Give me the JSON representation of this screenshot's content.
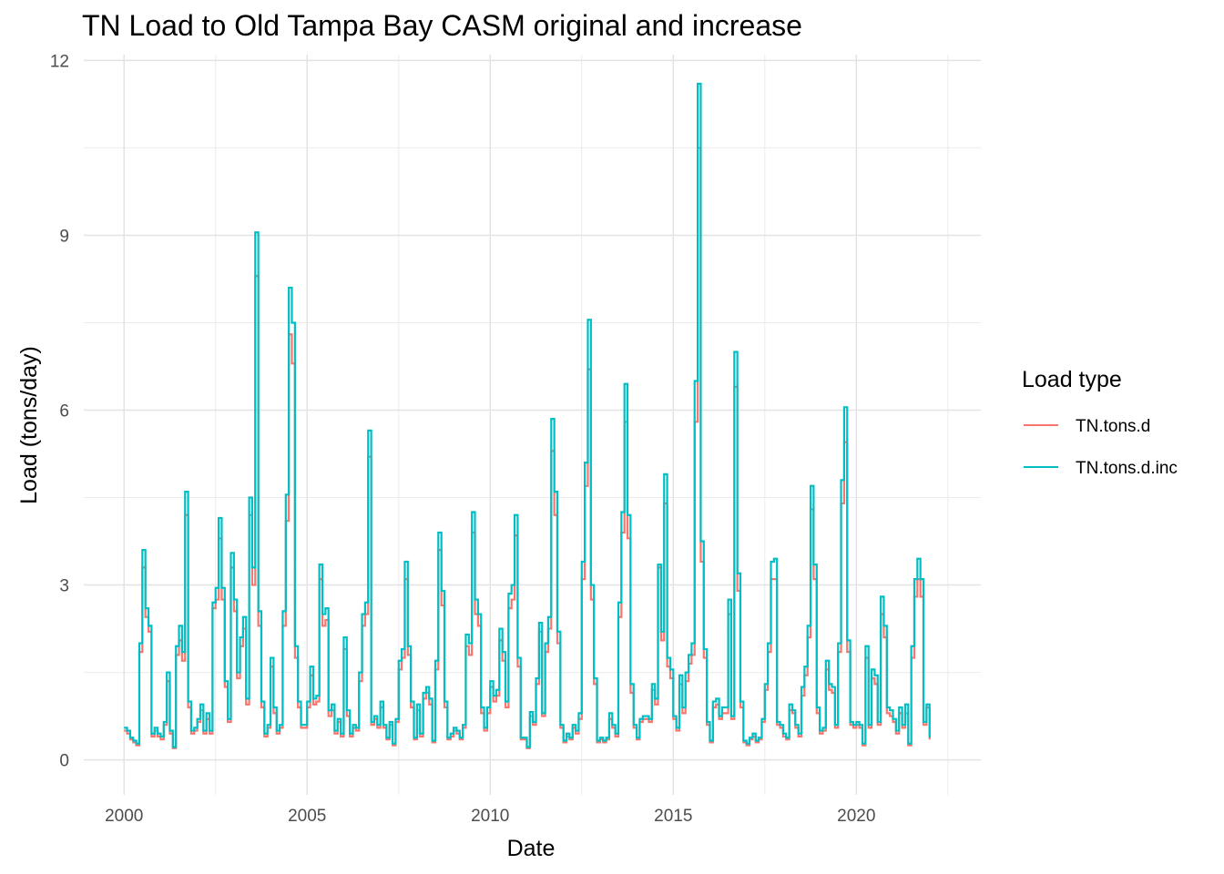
{
  "chart_data": {
    "type": "line",
    "title": "TN Load to Old Tampa Bay CASM original and increase",
    "xlabel": "Date",
    "ylabel": "Load (tons/day)",
    "x_unit": "decimal year",
    "xlim": [
      1998.9,
      2023.4
    ],
    "ylim": [
      -0.6,
      12.1
    ],
    "x_ticks": [
      2000,
      2005,
      2010,
      2015,
      2020
    ],
    "x_tick_labels": [
      "2000",
      "2005",
      "2010",
      "2015",
      "2020"
    ],
    "y_ticks": [
      0,
      3,
      6,
      9,
      12
    ],
    "y_tick_labels": [
      "0",
      "3",
      "6",
      "9",
      "12"
    ],
    "grid": true,
    "step": true,
    "legend": {
      "title": "Load type",
      "position": "right"
    },
    "x": [
      2000.0,
      2000.083,
      2000.167,
      2000.25,
      2000.333,
      2000.417,
      2000.5,
      2000.583,
      2000.667,
      2000.75,
      2000.833,
      2000.917,
      2001.0,
      2001.083,
      2001.167,
      2001.25,
      2001.333,
      2001.417,
      2001.5,
      2001.583,
      2001.667,
      2001.75,
      2001.833,
      2001.917,
      2002.0,
      2002.083,
      2002.167,
      2002.25,
      2002.333,
      2002.417,
      2002.5,
      2002.583,
      2002.667,
      2002.75,
      2002.833,
      2002.917,
      2003.0,
      2003.083,
      2003.167,
      2003.25,
      2003.333,
      2003.417,
      2003.5,
      2003.583,
      2003.667,
      2003.75,
      2003.833,
      2003.917,
      2004.0,
      2004.083,
      2004.167,
      2004.25,
      2004.333,
      2004.417,
      2004.5,
      2004.583,
      2004.667,
      2004.75,
      2004.833,
      2004.917,
      2005.0,
      2005.083,
      2005.167,
      2005.25,
      2005.333,
      2005.417,
      2005.5,
      2005.583,
      2005.667,
      2005.75,
      2005.833,
      2005.917,
      2006.0,
      2006.083,
      2006.167,
      2006.25,
      2006.333,
      2006.417,
      2006.5,
      2006.583,
      2006.667,
      2006.75,
      2006.833,
      2006.917,
      2007.0,
      2007.083,
      2007.167,
      2007.25,
      2007.333,
      2007.417,
      2007.5,
      2007.583,
      2007.667,
      2007.75,
      2007.833,
      2007.917,
      2008.0,
      2008.083,
      2008.167,
      2008.25,
      2008.333,
      2008.417,
      2008.5,
      2008.583,
      2008.667,
      2008.75,
      2008.833,
      2008.917,
      2009.0,
      2009.083,
      2009.167,
      2009.25,
      2009.333,
      2009.417,
      2009.5,
      2009.583,
      2009.667,
      2009.75,
      2009.833,
      2009.917,
      2010.0,
      2010.083,
      2010.167,
      2010.25,
      2010.333,
      2010.417,
      2010.5,
      2010.583,
      2010.667,
      2010.75,
      2010.833,
      2010.917,
      2011.0,
      2011.083,
      2011.167,
      2011.25,
      2011.333,
      2011.417,
      2011.5,
      2011.583,
      2011.667,
      2011.75,
      2011.833,
      2011.917,
      2012.0,
      2012.083,
      2012.167,
      2012.25,
      2012.333,
      2012.417,
      2012.5,
      2012.583,
      2012.667,
      2012.75,
      2012.833,
      2012.917,
      2013.0,
      2013.083,
      2013.167,
      2013.25,
      2013.333,
      2013.417,
      2013.5,
      2013.583,
      2013.667,
      2013.75,
      2013.833,
      2013.917,
      2014.0,
      2014.083,
      2014.167,
      2014.25,
      2014.333,
      2014.417,
      2014.5,
      2014.583,
      2014.667,
      2014.75,
      2014.833,
      2014.917,
      2015.0,
      2015.083,
      2015.167,
      2015.25,
      2015.333,
      2015.417,
      2015.5,
      2015.583,
      2015.667,
      2015.75,
      2015.833,
      2015.917,
      2016.0,
      2016.083,
      2016.167,
      2016.25,
      2016.333,
      2016.417,
      2016.5,
      2016.583,
      2016.667,
      2016.75,
      2016.833,
      2016.917,
      2017.0,
      2017.083,
      2017.167,
      2017.25,
      2017.333,
      2017.417,
      2017.5,
      2017.583,
      2017.667,
      2017.75,
      2017.833,
      2017.917,
      2018.0,
      2018.083,
      2018.167,
      2018.25,
      2018.333,
      2018.417,
      2018.5,
      2018.583,
      2018.667,
      2018.75,
      2018.833,
      2018.917,
      2019.0,
      2019.083,
      2019.167,
      2019.25,
      2019.333,
      2019.417,
      2019.5,
      2019.583,
      2019.667,
      2019.75,
      2019.833,
      2019.917,
      2020.0,
      2020.083,
      2020.167,
      2020.25,
      2020.333,
      2020.417,
      2020.5,
      2020.583,
      2020.667,
      2020.75,
      2020.833,
      2020.917,
      2021.0,
      2021.083,
      2021.167,
      2021.25,
      2021.333,
      2021.417,
      2021.5,
      2021.583,
      2021.667,
      2021.75,
      2021.833,
      2021.917,
      2022.0
    ],
    "series": [
      {
        "name": "TN.tons.d",
        "color": "#F8766D",
        "values": [
          0.5,
          0.45,
          0.35,
          0.3,
          0.25,
          1.85,
          3.3,
          2.45,
          2.2,
          0.4,
          0.5,
          0.4,
          0.35,
          0.6,
          1.35,
          0.45,
          0.2,
          1.8,
          2.05,
          1.7,
          4.2,
          0.9,
          0.45,
          0.5,
          0.65,
          0.85,
          0.45,
          0.7,
          0.45,
          2.6,
          2.75,
          3.8,
          2.75,
          1.25,
          0.65,
          3.3,
          2.55,
          1.4,
          1.95,
          2.25,
          0.95,
          4.2,
          3.0,
          8.3,
          2.3,
          0.9,
          0.4,
          0.55,
          1.6,
          0.8,
          0.45,
          0.55,
          2.3,
          4.1,
          7.3,
          6.8,
          1.75,
          0.9,
          0.55,
          0.55,
          0.9,
          1.45,
          0.95,
          1.0,
          3.1,
          2.3,
          2.4,
          0.75,
          0.85,
          0.45,
          0.65,
          0.4,
          1.9,
          0.75,
          0.4,
          0.55,
          0.5,
          1.35,
          2.3,
          2.5,
          5.2,
          0.6,
          0.7,
          0.55,
          0.9,
          0.55,
          0.35,
          0.6,
          0.25,
          0.65,
          1.55,
          1.75,
          3.1,
          1.8,
          0.9,
          0.35,
          0.85,
          0.4,
          1.05,
          1.15,
          0.95,
          0.3,
          1.55,
          3.6,
          2.65,
          0.9,
          0.35,
          0.4,
          0.5,
          0.45,
          0.35,
          0.55,
          1.95,
          1.8,
          3.9,
          2.5,
          2.3,
          0.8,
          0.5,
          0.8,
          1.25,
          1.0,
          1.1,
          2.05,
          1.7,
          0.9,
          2.6,
          2.75,
          3.85,
          1.6,
          0.35,
          0.35,
          0.2,
          0.75,
          0.6,
          1.3,
          2.2,
          0.75,
          1.85,
          2.25,
          5.3,
          4.2,
          2.0,
          0.55,
          0.3,
          0.4,
          0.35,
          0.55,
          0.45,
          0.7,
          3.1,
          4.7,
          6.7,
          2.75,
          1.3,
          0.3,
          0.35,
          0.3,
          0.35,
          0.7,
          0.55,
          0.4,
          2.45,
          3.9,
          5.8,
          3.8,
          1.15,
          0.55,
          0.35,
          0.65,
          0.7,
          0.7,
          0.65,
          1.2,
          0.95,
          3.3,
          2.05,
          4.4,
          1.6,
          1.4,
          0.7,
          0.5,
          1.3,
          0.8,
          1.35,
          1.65,
          1.8,
          5.8,
          10.5,
          3.4,
          1.75,
          0.6,
          0.3,
          0.9,
          0.95,
          0.7,
          0.8,
          0.8,
          2.5,
          0.7,
          6.4,
          2.9,
          0.9,
          0.3,
          0.25,
          0.35,
          0.4,
          0.3,
          0.35,
          0.65,
          1.2,
          1.85,
          3.1,
          3.1,
          0.6,
          0.55,
          0.4,
          0.35,
          0.85,
          0.8,
          0.55,
          0.4,
          1.1,
          1.45,
          2.1,
          4.3,
          3.1,
          0.8,
          0.45,
          0.5,
          1.55,
          1.2,
          1.15,
          0.55,
          1.85,
          4.4,
          5.45,
          1.85,
          0.6,
          0.55,
          0.6,
          0.55,
          0.25,
          1.75,
          0.55,
          1.4,
          1.3,
          0.6,
          2.5,
          2.1,
          0.8,
          0.75,
          0.65,
          0.45,
          0.8,
          0.55,
          0.8,
          0.25,
          1.75,
          2.8,
          3.1,
          2.8,
          0.6,
          0.9,
          0.35
        ]
      },
      {
        "name": "TN.tons.d.inc",
        "color": "#00BFC4",
        "values": [
          0.55,
          0.5,
          0.38,
          0.33,
          0.28,
          2.0,
          3.6,
          2.6,
          2.3,
          0.45,
          0.55,
          0.45,
          0.4,
          0.65,
          1.5,
          0.5,
          0.22,
          1.95,
          2.3,
          1.85,
          4.6,
          1.0,
          0.5,
          0.55,
          0.7,
          0.95,
          0.5,
          0.8,
          0.5,
          2.7,
          2.95,
          4.15,
          2.95,
          1.35,
          0.7,
          3.55,
          2.75,
          1.5,
          2.1,
          2.45,
          1.05,
          4.5,
          3.3,
          9.05,
          2.55,
          1.0,
          0.45,
          0.6,
          1.75,
          0.9,
          0.5,
          0.6,
          2.55,
          4.55,
          8.1,
          7.5,
          1.95,
          1.0,
          0.6,
          0.6,
          1.0,
          1.6,
          1.05,
          1.1,
          3.35,
          2.5,
          2.6,
          0.85,
          0.95,
          0.5,
          0.7,
          0.45,
          2.1,
          0.85,
          0.45,
          0.6,
          0.55,
          1.5,
          2.5,
          2.7,
          5.65,
          0.65,
          0.75,
          0.6,
          1.0,
          0.6,
          0.38,
          0.65,
          0.28,
          0.7,
          1.7,
          1.9,
          3.4,
          1.95,
          1.0,
          0.38,
          0.95,
          0.45,
          1.15,
          1.25,
          1.05,
          0.33,
          1.7,
          3.9,
          2.9,
          1.0,
          0.38,
          0.45,
          0.55,
          0.5,
          0.38,
          0.6,
          2.15,
          2.0,
          4.25,
          2.75,
          2.5,
          0.9,
          0.55,
          0.9,
          1.35,
          1.1,
          1.2,
          2.25,
          1.85,
          1.0,
          2.85,
          3.0,
          4.2,
          1.75,
          0.38,
          0.38,
          0.22,
          0.82,
          0.65,
          1.4,
          2.35,
          0.8,
          2.0,
          2.45,
          5.85,
          4.6,
          2.2,
          0.6,
          0.33,
          0.45,
          0.38,
          0.6,
          0.5,
          0.8,
          3.4,
          5.1,
          7.55,
          3.0,
          1.4,
          0.33,
          0.38,
          0.33,
          0.38,
          0.8,
          0.6,
          0.45,
          2.7,
          4.25,
          6.45,
          4.2,
          1.3,
          0.6,
          0.38,
          0.7,
          0.75,
          0.75,
          0.7,
          1.3,
          1.05,
          3.35,
          2.2,
          4.9,
          1.75,
          1.55,
          0.75,
          0.55,
          1.45,
          0.9,
          1.5,
          1.8,
          2.0,
          6.5,
          11.6,
          3.75,
          1.9,
          0.65,
          0.33,
          1.0,
          1.05,
          0.75,
          0.9,
          0.9,
          2.75,
          0.75,
          7.0,
          3.2,
          1.0,
          0.33,
          0.28,
          0.38,
          0.45,
          0.33,
          0.38,
          0.7,
          1.3,
          2.0,
          3.4,
          3.45,
          0.65,
          0.6,
          0.45,
          0.38,
          0.95,
          0.85,
          0.6,
          0.45,
          1.25,
          1.6,
          2.3,
          4.7,
          3.35,
          0.9,
          0.5,
          0.55,
          1.7,
          1.3,
          1.25,
          0.6,
          2.0,
          4.8,
          6.05,
          2.05,
          0.65,
          0.6,
          0.65,
          0.6,
          0.28,
          1.95,
          0.6,
          1.55,
          1.45,
          0.65,
          2.8,
          2.3,
          0.9,
          0.85,
          0.7,
          0.5,
          0.9,
          0.6,
          0.95,
          0.28,
          1.95,
          3.1,
          3.45,
          3.1,
          0.65,
          0.95,
          0.38
        ]
      }
    ]
  }
}
